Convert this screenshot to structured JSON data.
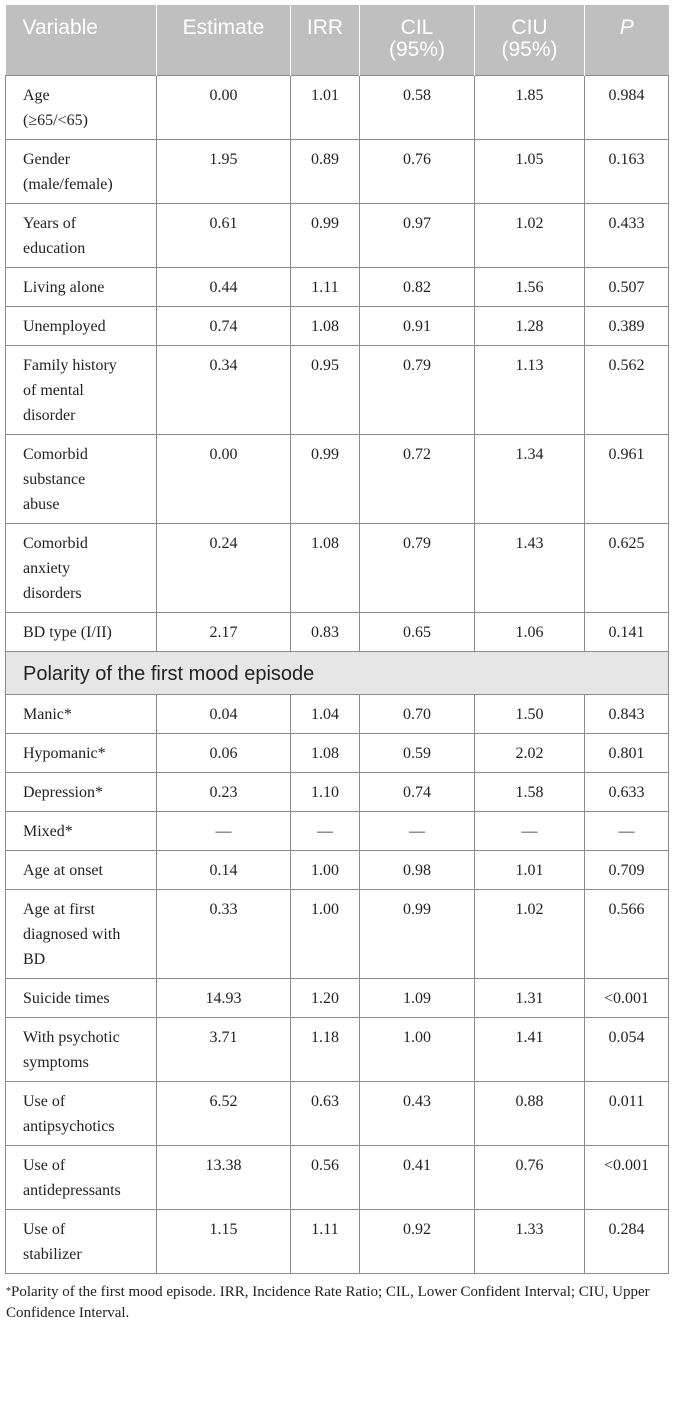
{
  "table": {
    "headers": [
      "Variable",
      "Estimate",
      "IRR",
      "CIL\n(95%)",
      "CIU\n(95%)",
      "P"
    ],
    "rows_group1": [
      {
        "variable": "Age\n(≥65/<65)",
        "estimate": "0.00",
        "irr": "1.01",
        "cil": "0.58",
        "ciu": "1.85",
        "p": "0.984"
      },
      {
        "variable": "Gender\n(male/female)",
        "estimate": "1.95",
        "irr": "0.89",
        "cil": "0.76",
        "ciu": "1.05",
        "p": "0.163"
      },
      {
        "variable": "Years of\neducation",
        "estimate": "0.61",
        "irr": "0.99",
        "cil": "0.97",
        "ciu": "1.02",
        "p": "0.433"
      },
      {
        "variable": "Living alone",
        "estimate": "0.44",
        "irr": "1.11",
        "cil": "0.82",
        "ciu": "1.56",
        "p": "0.507"
      },
      {
        "variable": "Unemployed",
        "estimate": "0.74",
        "irr": "1.08",
        "cil": "0.91",
        "ciu": "1.28",
        "p": "0.389"
      },
      {
        "variable": "Family history\nof mental\ndisorder",
        "estimate": "0.34",
        "irr": "0.95",
        "cil": "0.79",
        "ciu": "1.13",
        "p": "0.562"
      },
      {
        "variable": "Comorbid\nsubstance\nabuse",
        "estimate": "0.00",
        "irr": "0.99",
        "cil": "0.72",
        "ciu": "1.34",
        "p": "0.961"
      },
      {
        "variable": "Comorbid\nanxiety\ndisorders",
        "estimate": "0.24",
        "irr": "1.08",
        "cil": "0.79",
        "ciu": "1.43",
        "p": "0.625"
      },
      {
        "variable": "BD type (I/II)",
        "estimate": "2.17",
        "irr": "0.83",
        "cil": "0.65",
        "ciu": "1.06",
        "p": "0.141"
      }
    ],
    "section_title": "Polarity of the first mood episode",
    "rows_group2": [
      {
        "variable": "Manic*",
        "estimate": "0.04",
        "irr": "1.04",
        "cil": "0.70",
        "ciu": "1.50",
        "p": "0.843"
      },
      {
        "variable": "Hypomanic*",
        "estimate": "0.06",
        "irr": "1.08",
        "cil": "0.59",
        "ciu": "2.02",
        "p": "0.801"
      },
      {
        "variable": "Depression*",
        "estimate": "0.23",
        "irr": "1.10",
        "cil": "0.74",
        "ciu": "1.58",
        "p": "0.633"
      },
      {
        "variable": "Mixed*",
        "estimate": "—",
        "irr": "—",
        "cil": "—",
        "ciu": "—",
        "p": "—"
      },
      {
        "variable": "Age at onset",
        "estimate": "0.14",
        "irr": "1.00",
        "cil": "0.98",
        "ciu": "1.01",
        "p": "0.709"
      },
      {
        "variable": "Age at first\ndiagnosed with\nBD",
        "estimate": "0.33",
        "irr": "1.00",
        "cil": "0.99",
        "ciu": "1.02",
        "p": "0.566"
      },
      {
        "variable": "Suicide times",
        "estimate": "14.93",
        "irr": "1.20",
        "cil": "1.09",
        "ciu": "1.31",
        "p": "<0.001"
      },
      {
        "variable": "With psychotic\nsymptoms",
        "estimate": "3.71",
        "irr": "1.18",
        "cil": "1.00",
        "ciu": "1.41",
        "p": "0.054"
      },
      {
        "variable": "Use of\nantipsychotics",
        "estimate": "6.52",
        "irr": "0.63",
        "cil": "0.43",
        "ciu": "0.88",
        "p": "0.011"
      },
      {
        "variable": "Use of\nantidepressants",
        "estimate": "13.38",
        "irr": "0.56",
        "cil": "0.41",
        "ciu": "0.76",
        "p": "<0.001"
      },
      {
        "variable": "Use of\nstabilizer",
        "estimate": "1.15",
        "irr": "1.11",
        "cil": "0.92",
        "ciu": "1.33",
        "p": "0.284"
      }
    ]
  },
  "footnote": {
    "marker": "*",
    "text": "Polarity of the first mood episode. IRR, Incidence Rate Ratio; CIL, Lower Confident Interval; CIU, Upper Confidence Interval."
  },
  "colors": {
    "header_bg": "#bfbfbf",
    "header_text": "#ffffff",
    "section_bg": "#e6e6e6",
    "border": "#8c8c8c",
    "text": "#222222"
  }
}
